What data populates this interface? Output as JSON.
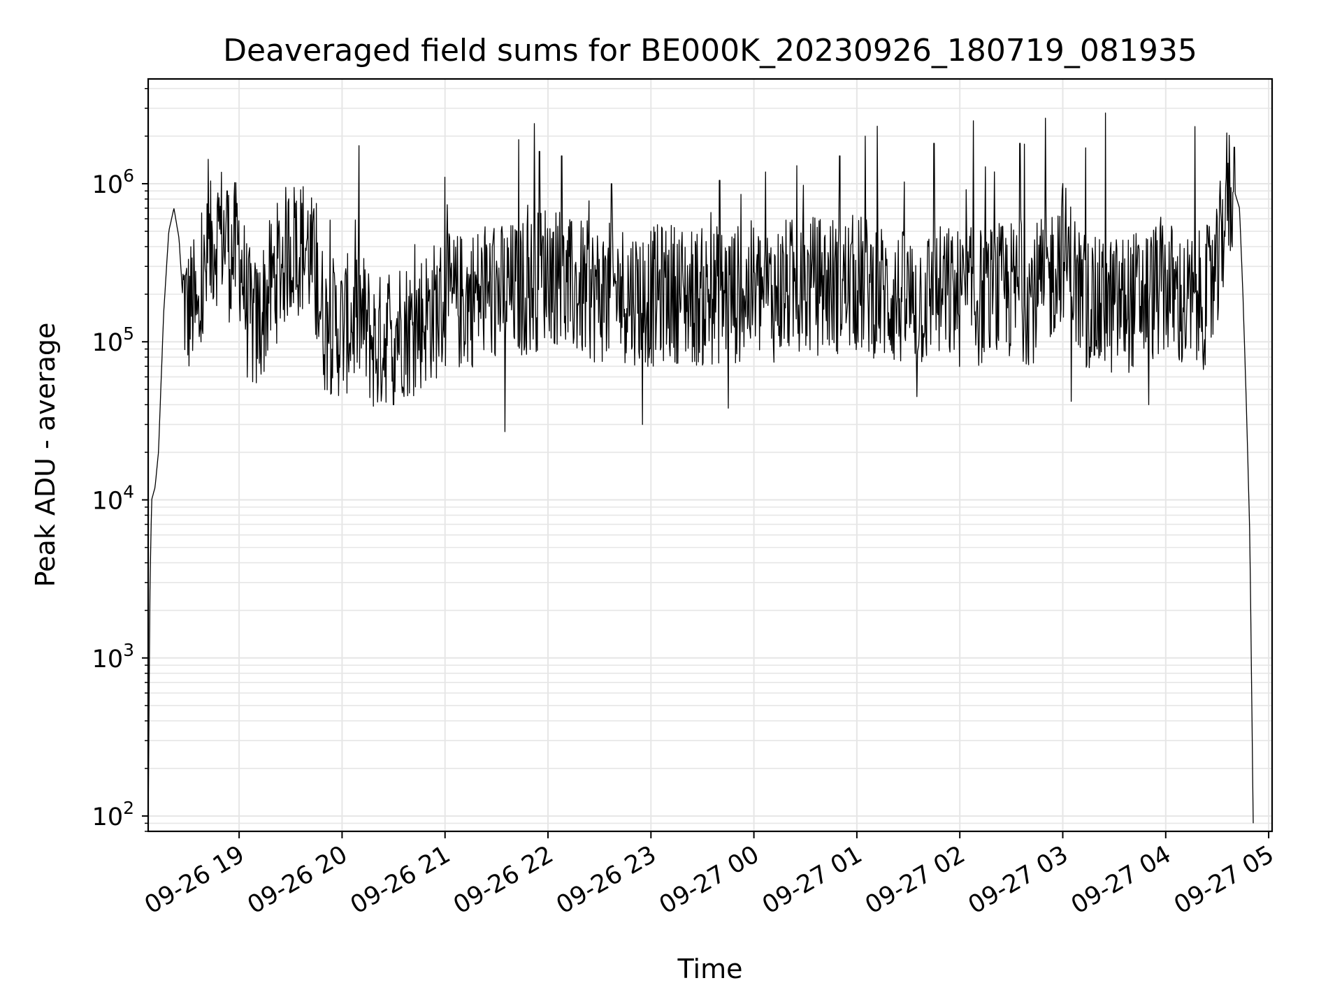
{
  "chart_data": {
    "type": "line",
    "title": "Deaveraged field sums for BE000K_20230926_180719_081935",
    "xlabel": "Time",
    "ylabel": "Peak ADU - average",
    "yscale": "log",
    "ylim": [
      80,
      4600000
    ],
    "xlim": [
      "09-26 18:07",
      "09-27 05:02"
    ],
    "grid": true,
    "grid_minor": true,
    "line_color": "#000000",
    "grid_color": "#e6e6e6",
    "x_ticks": [
      "09-26 19",
      "09-26 20",
      "09-26 21",
      "09-26 22",
      "09-26 23",
      "09-27 00",
      "09-27 01",
      "09-27 02",
      "09-27 03",
      "09-27 04",
      "09-27 05"
    ],
    "y_ticks": [
      {
        "base": "10",
        "exp": "2",
        "value": 100
      },
      {
        "base": "10",
        "exp": "3",
        "value": 1000
      },
      {
        "base": "10",
        "exp": "4",
        "value": 10000
      },
      {
        "base": "10",
        "exp": "5",
        "value": 100000
      },
      {
        "base": "10",
        "exp": "6",
        "value": 1000000
      }
    ],
    "series": [
      {
        "color": "#000000",
        "x": [
          "09-26 18:07",
          "09-26 18:08",
          "09-26 18:09",
          "09-26 18:11",
          "09-26 18:13",
          "09-26 18:16",
          "09-26 18:19",
          "09-26 18:22",
          "09-26 18:25",
          "09-26 18:27",
          "09-26 18:30",
          "09-26 18:33",
          "09-26 18:36",
          "09-26 18:40",
          "09-26 18:45",
          "09-26 18:50",
          "09-26 18:55",
          "09-26 19:00",
          "09-26 19:05",
          "09-26 19:10",
          "09-26 19:20",
          "09-26 19:30",
          "09-26 19:40",
          "09-26 19:50",
          "09-26 20:00",
          "09-26 20:10",
          "09-26 20:20",
          "09-26 20:30",
          "09-26 20:40",
          "09-26 20:50",
          "09-26 21:00",
          "09-26 21:10",
          "09-26 21:20",
          "09-26 21:30",
          "09-26 21:40",
          "09-26 21:50",
          "09-26 21:55",
          "09-26 22:00",
          "09-26 22:10",
          "09-26 22:20",
          "09-26 22:30",
          "09-26 22:40",
          "09-26 22:50",
          "09-26 23:00",
          "09-26 23:10",
          "09-26 23:20",
          "09-26 23:30",
          "09-26 23:40",
          "09-26 23:50",
          "09-27 00:00",
          "09-27 00:10",
          "09-27 00:20",
          "09-27 00:30",
          "09-27 00:40",
          "09-27 00:50",
          "09-27 01:00",
          "09-27 01:10",
          "09-27 01:20",
          "09-27 01:30",
          "09-27 01:40",
          "09-27 01:50",
          "09-27 02:00",
          "09-27 02:10",
          "09-27 02:20",
          "09-27 02:30",
          "09-27 02:40",
          "09-27 02:50",
          "09-27 03:00",
          "09-27 03:10",
          "09-27 03:20",
          "09-27 03:30",
          "09-27 03:40",
          "09-27 03:50",
          "09-27 04:00",
          "09-27 04:10",
          "09-27 04:20",
          "09-27 04:25",
          "09-27 04:30",
          "09-27 04:35",
          "09-27 04:40",
          "09-27 04:43",
          "09-27 04:45",
          "09-27 04:47",
          "09-27 04:49",
          "09-27 04:51"
        ],
        "y": [
          90,
          2500,
          10000,
          12000,
          20000,
          150000,
          500000,
          700000,
          450000,
          200000,
          150000,
          180000,
          120000,
          250000,
          450000,
          500000,
          350000,
          400000,
          150000,
          120000,
          250000,
          400000,
          400000,
          130000,
          120000,
          150000,
          90000,
          130000,
          120000,
          150000,
          170000,
          180000,
          200000,
          200000,
          210000,
          230000,
          250000,
          300000,
          220000,
          210000,
          200000,
          210000,
          200000,
          190000,
          210000,
          200000,
          190000,
          200000,
          200000,
          210000,
          200000,
          220000,
          220000,
          230000,
          230000,
          230000,
          220000,
          190000,
          180000,
          190000,
          200000,
          190000,
          190000,
          200000,
          210000,
          200000,
          220000,
          400000,
          200000,
          160000,
          170000,
          180000,
          200000,
          230000,
          170000,
          180000,
          200000,
          250000,
          800000,
          900000,
          700000,
          200000,
          40000,
          6000,
          90
        ],
        "spikes": [
          {
            "x": "09-26 18:53",
            "y": 900000
          },
          {
            "x": "09-26 19:45",
            "y": 750000
          },
          {
            "x": "09-26 20:30",
            "y": 40000
          },
          {
            "x": "09-26 21:00",
            "y": 1100000
          },
          {
            "x": "09-26 21:35",
            "y": 27000
          },
          {
            "x": "09-26 21:43",
            "y": 1900000
          },
          {
            "x": "09-26 21:52",
            "y": 2400000
          },
          {
            "x": "09-26 21:55",
            "y": 1600000
          },
          {
            "x": "09-26 22:08",
            "y": 1500000
          },
          {
            "x": "09-26 22:37",
            "y": 1000000
          },
          {
            "x": "09-26 22:55",
            "y": 30000
          },
          {
            "x": "09-26 23:40",
            "y": 1050000
          },
          {
            "x": "09-26 23:45",
            "y": 38000
          },
          {
            "x": "09-27 00:25",
            "y": 1300000
          },
          {
            "x": "09-27 00:50",
            "y": 1500000
          },
          {
            "x": "09-27 01:05",
            "y": 2000000
          },
          {
            "x": "09-27 01:35",
            "y": 45000
          },
          {
            "x": "09-27 01:45",
            "y": 1800000
          },
          {
            "x": "09-27 02:08",
            "y": 2500000
          },
          {
            "x": "09-27 02:35",
            "y": 1800000
          },
          {
            "x": "09-27 02:50",
            "y": 2600000
          },
          {
            "x": "09-27 03:05",
            "y": 42000
          },
          {
            "x": "09-27 03:25",
            "y": 2800000
          },
          {
            "x": "09-27 03:50",
            "y": 40000
          },
          {
            "x": "09-27 04:17",
            "y": 2300000
          },
          {
            "x": "09-27 04:40",
            "y": 1700000
          }
        ]
      }
    ]
  }
}
